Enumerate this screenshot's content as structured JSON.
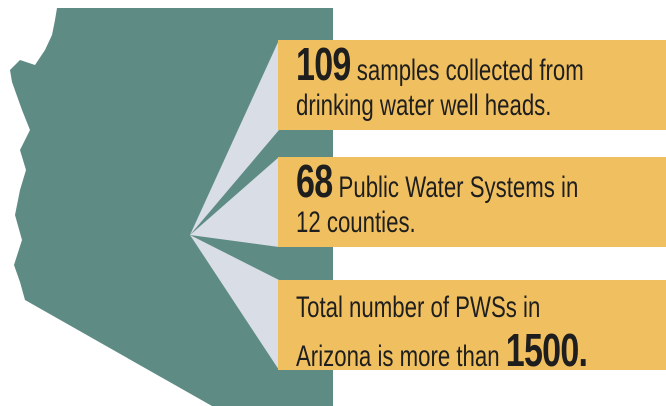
{
  "callouts": [
    {
      "number": "109",
      "line1": "samples collected from",
      "line2": "drinking water well heads."
    },
    {
      "number": "68",
      "line1": "Public Water Systems in",
      "line2": "12 counties."
    },
    {
      "line1": "Total number of PWSs in",
      "line2": "Arizona is more than",
      "number": "1500."
    }
  ]
}
